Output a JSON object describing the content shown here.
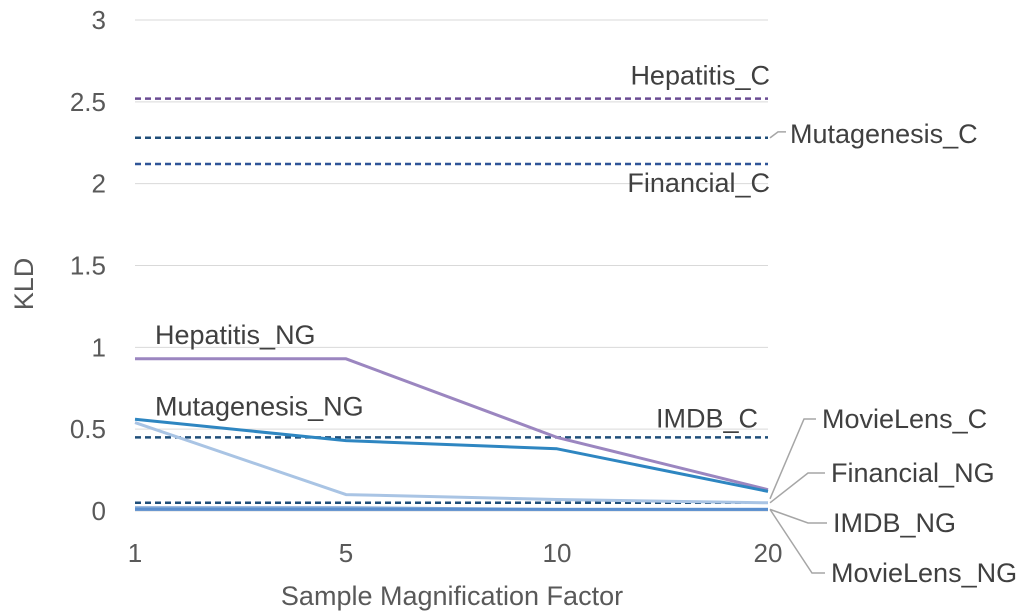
{
  "chart_data": {
    "type": "line",
    "title": "",
    "xlabel": "Sample Magnification Factor",
    "ylabel": "KLD",
    "categories": [
      "1",
      "5",
      "10",
      "20"
    ],
    "ylim": [
      0,
      3
    ],
    "yticks": [
      0,
      0.5,
      1,
      1.5,
      2,
      2.5,
      3
    ],
    "ytick_labels": [
      "0",
      "0.5",
      "1",
      "1.5",
      "2",
      "2.5",
      "3"
    ],
    "grid": true,
    "legend": "none (series labelled directly on the plot)",
    "series": [
      {
        "name": "Hepatitis_C",
        "values": [
          2.52,
          2.52,
          2.52,
          2.52
        ],
        "color": "#6a4c93",
        "dashed": true
      },
      {
        "name": "Mutagenesis_C",
        "values": [
          2.28,
          2.28,
          2.28,
          2.28
        ],
        "color": "#1f4e79",
        "dashed": true
      },
      {
        "name": "Financial_C",
        "values": [
          2.12,
          2.12,
          2.12,
          2.12
        ],
        "color": "#2f5597",
        "dashed": true
      },
      {
        "name": "IMDB_C",
        "values": [
          0.45,
          0.45,
          0.45,
          0.45
        ],
        "color": "#1f4e79",
        "dashed": true
      },
      {
        "name": "MovieLens_C",
        "values": [
          0.05,
          0.05,
          0.05,
          0.05
        ],
        "color": "#1f4e79",
        "dashed": true
      },
      {
        "name": "Hepatitis_NG",
        "values": [
          0.93,
          0.93,
          0.45,
          0.13
        ],
        "color": "#9b86c0",
        "dashed": false
      },
      {
        "name": "Mutagenesis_NG",
        "values": [
          0.56,
          0.43,
          0.38,
          0.12
        ],
        "color": "#2e86c1",
        "dashed": false
      },
      {
        "name": "Financial_NG",
        "values": [
          0.54,
          0.1,
          0.07,
          0.05
        ],
        "color": "#a9c4e4",
        "dashed": false
      },
      {
        "name": "IMDB_NG",
        "values": [
          0.02,
          0.02,
          0.01,
          0.01
        ],
        "color": "#7fa6d6",
        "dashed": false
      },
      {
        "name": "MovieLens_NG",
        "values": [
          0.01,
          0.01,
          0.01,
          0.01
        ],
        "color": "#5b8fcf",
        "dashed": false
      }
    ]
  }
}
